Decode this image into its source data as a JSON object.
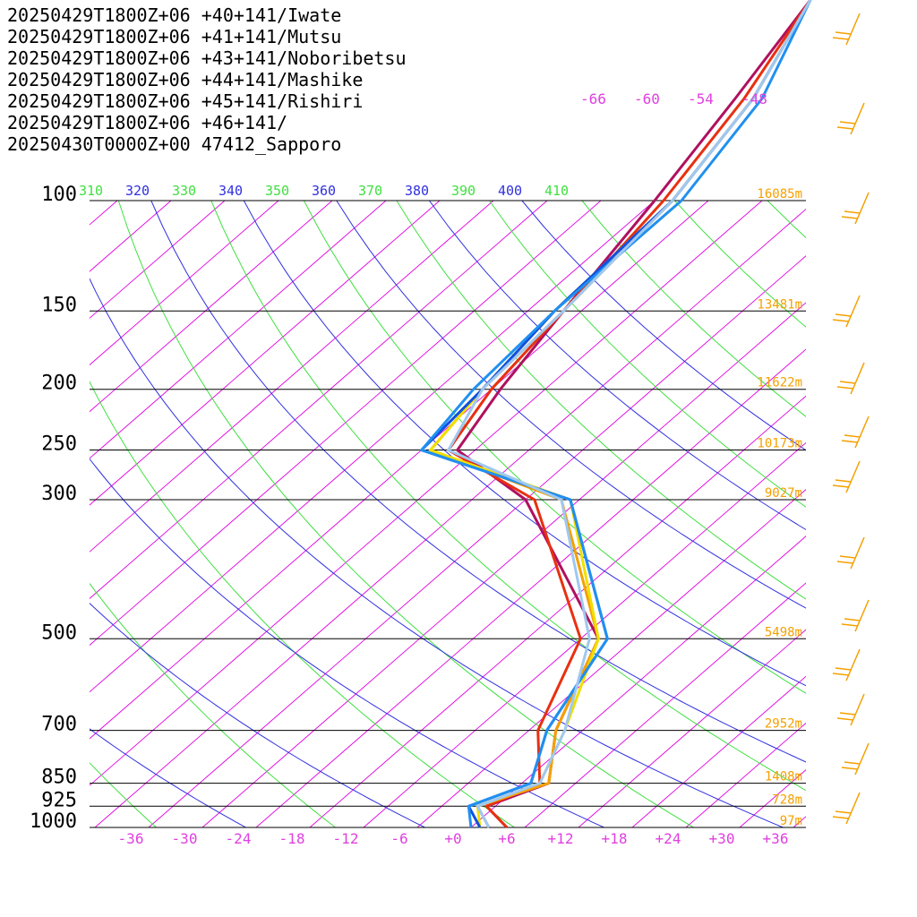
{
  "chart_data": {
    "type": "line",
    "subtype": "skew-T log-P sounding",
    "title": "",
    "xlabel": "",
    "ylabel": "",
    "x_unit_ticks": [
      "-36",
      "-30",
      "-24",
      "-18",
      "-12",
      "-6",
      "+0",
      "+6",
      "+12",
      "+18",
      "+24",
      "+30",
      "+36"
    ],
    "x_tick_values": [
      -36,
      -30,
      -24,
      -18,
      -12,
      -6,
      0,
      6,
      12,
      18,
      24,
      30,
      36
    ],
    "pressure_ticks": [
      "100",
      "150",
      "200",
      "250",
      "300",
      "500",
      "700",
      "850",
      "925",
      "1000"
    ],
    "pressure_tick_values": [
      100,
      150,
      200,
      250,
      300,
      500,
      700,
      850,
      925,
      1000
    ],
    "height_labels": [
      "16085m",
      "13481m",
      "11622m",
      "10173m",
      "9027m",
      "5498m",
      "2952m",
      "1408m",
      "728m",
      "97m"
    ],
    "height_label_pressures": [
      100,
      150,
      200,
      250,
      300,
      500,
      700,
      850,
      925,
      1000
    ],
    "theta_ticks": [
      "310",
      "320",
      "330",
      "340",
      "350",
      "360",
      "370",
      "380",
      "390",
      "400",
      "410"
    ],
    "mixing_ratio_ticks": [
      "-66",
      "-60",
      "-54",
      "-48"
    ],
    "grid": true,
    "colors": {
      "isotherm": "#e000e0",
      "isobar": "#000000",
      "dry_adiabat": "#40e040",
      "moist_adiabat": "#3030e0",
      "height_label": "#f5a000",
      "wind_barb": "#f5a000",
      "temp_tick": "#e040e0"
    },
    "series": [
      {
        "name": "20250429T1800Z+06 +40+141/Iwate",
        "color": "#b0105f",
        "temperature": [
          [
            1000,
            6
          ],
          [
            925,
            1
          ],
          [
            850,
            5
          ],
          [
            700,
            -1
          ],
          [
            500,
            -8
          ],
          [
            300,
            -34
          ],
          [
            250,
            -48
          ],
          [
            200,
            -51
          ],
          [
            150,
            -54
          ],
          [
            100,
            -58
          ]
        ]
      },
      {
        "name": "20250429T1800Z+06 +41+141/Mutsu",
        "color": "#e83010",
        "temperature": [
          [
            1000,
            6
          ],
          [
            925,
            1
          ],
          [
            850,
            4
          ],
          [
            700,
            -3
          ],
          [
            500,
            -10
          ],
          [
            300,
            -33
          ],
          [
            250,
            -49
          ],
          [
            200,
            -52
          ],
          [
            150,
            -54
          ],
          [
            100,
            -57
          ]
        ]
      },
      {
        "name": "20250429T1800Z+06 +43+141/Noboribetsu",
        "color": "#f5a000",
        "temperature": [
          [
            1000,
            4
          ],
          [
            925,
            0
          ],
          [
            850,
            5
          ],
          [
            700,
            -1
          ],
          [
            500,
            -8
          ],
          [
            300,
            -30
          ],
          [
            250,
            -51
          ],
          [
            200,
            -53
          ],
          [
            150,
            -54
          ],
          [
            100,
            -56
          ]
        ]
      },
      {
        "name": "20250429T1800Z+06 +44+141/Mashike",
        "color": "#f0e000",
        "temperature": [
          [
            1000,
            3
          ],
          [
            925,
            0
          ],
          [
            850,
            4
          ],
          [
            700,
            0
          ],
          [
            500,
            -8
          ],
          [
            300,
            -29
          ],
          [
            250,
            -51
          ],
          [
            200,
            -53
          ],
          [
            150,
            -55
          ],
          [
            100,
            -56
          ]
        ]
      },
      {
        "name": "20250429T1800Z+06 +45+141/Rishiri",
        "color": "#1050e0",
        "temperature": [
          [
            1000,
            3
          ],
          [
            925,
            -1
          ],
          [
            850,
            3
          ],
          [
            700,
            -2
          ],
          [
            500,
            -7
          ],
          [
            300,
            -29
          ],
          [
            250,
            -52
          ],
          [
            200,
            -53
          ],
          [
            150,
            -55
          ],
          [
            100,
            -56
          ]
        ]
      },
      {
        "name": "20250429T1800Z+06 +46+141/",
        "color": "#2090f0",
        "temperature": [
          [
            1000,
            2
          ],
          [
            925,
            -1
          ],
          [
            850,
            3
          ],
          [
            700,
            -2
          ],
          [
            500,
            -7
          ],
          [
            300,
            -29
          ],
          [
            250,
            -52
          ],
          [
            200,
            -54
          ],
          [
            150,
            -55
          ],
          [
            100,
            -55
          ]
        ]
      },
      {
        "name": "20250430T0000Z+00 47412_Sapporo",
        "color": "#a0c8f0",
        "temperature": [
          [
            1000,
            4
          ],
          [
            925,
            0
          ],
          [
            850,
            4
          ],
          [
            700,
            0
          ],
          [
            500,
            -9
          ],
          [
            300,
            -30
          ],
          [
            250,
            -49
          ],
          [
            200,
            -53
          ],
          [
            150,
            -54
          ],
          [
            100,
            -56
          ]
        ]
      }
    ]
  }
}
